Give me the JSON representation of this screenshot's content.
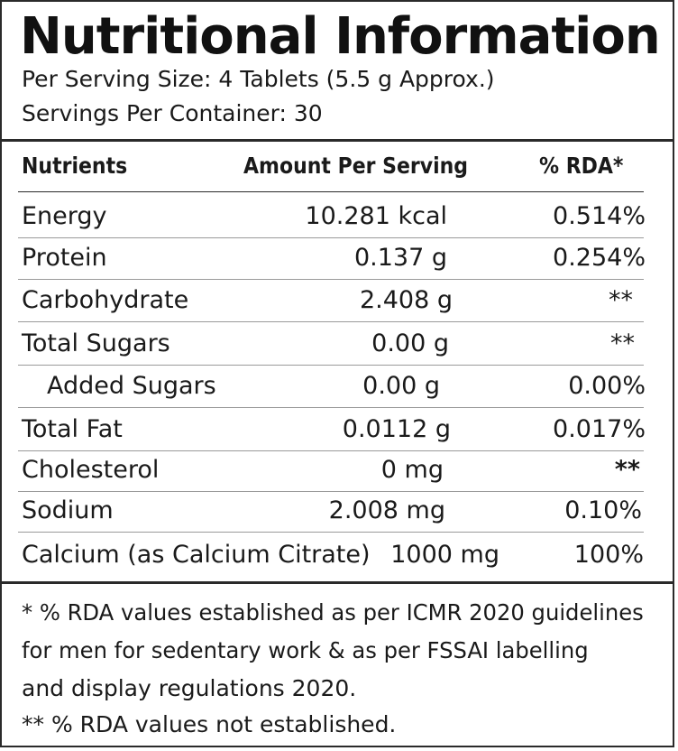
{
  "title": "Nutritional Information",
  "serving_size": "Per Serving Size: 4 Tablets (5.5 g Approx.)",
  "servings_per_container": "Servings Per Container: 30",
  "table": {
    "headers": {
      "nutrients": "Nutrients",
      "amount": "Amount Per Serving",
      "rda": "% RDA*"
    },
    "rows": [
      {
        "name": "Energy",
        "amount": "10.281 kcal",
        "rda": "0.514%"
      },
      {
        "name": "Protein",
        "amount": "0.137 g",
        "rda": "0.254%"
      },
      {
        "name": "Carbohydrate",
        "amount": "2.408 g",
        "rda": "**"
      },
      {
        "name": "Total Sugars",
        "amount": "0.00 g",
        "rda": "**"
      },
      {
        "name": "Added Sugars",
        "amount": "0.00 g",
        "rda": "0.00%"
      },
      {
        "name": "Total Fat",
        "amount": "0.0112 g",
        "rda": "0.017%"
      },
      {
        "name": "Cholesterol",
        "amount": "0 mg",
        "rda": "**"
      },
      {
        "name": "Sodium",
        "amount": "2.008 mg",
        "rda": "0.10%"
      },
      {
        "name": "Calcium (as Calcium Citrate)",
        "amount": "1000 mg",
        "rda": "100%"
      }
    ]
  },
  "footnotes": {
    "line1": "* % RDA values established as per ICMR 2020 guidelines",
    "line2": "for men for sedentary work & as per FSSAI labelling",
    "line3": "and display regulations 2020.",
    "line4": "** % RDA values not established."
  }
}
